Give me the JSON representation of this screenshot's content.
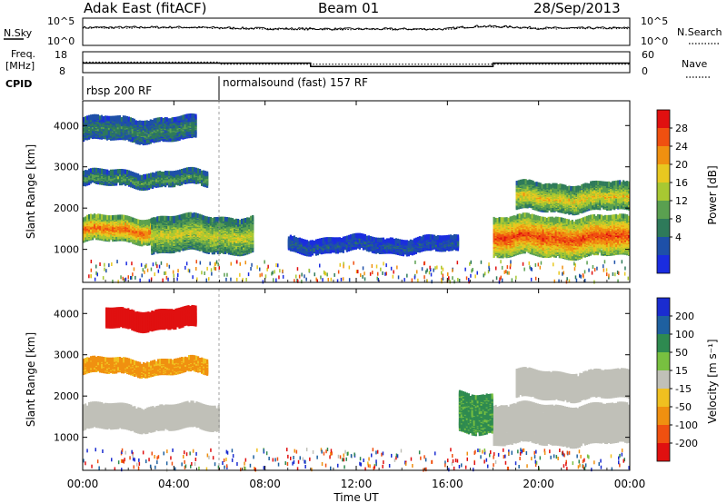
{
  "header": {
    "site": "Adak East (fitACF)",
    "beam": "Beam 01",
    "date": "28/Sep/2013"
  },
  "noise_panel": {
    "left_label": "N.Sky",
    "right_label": "N.Search",
    "left_ticks": [
      "10^5",
      "10^0"
    ],
    "right_ticks": [
      "10^5",
      "10^0"
    ]
  },
  "freq_panel": {
    "left_label_line1": "Freq.",
    "left_label_line2": "[MHz]",
    "right_label": "Nave",
    "left_ticks": [
      "18",
      "8"
    ],
    "right_ticks": [
      "60",
      "0"
    ]
  },
  "cpid_panel": {
    "label": "CPID",
    "mode1": "rbsp 200 RF",
    "mode2": "normalsound (fast) 157 RF"
  },
  "power_panel": {
    "ylabel": "Slant Range [km]",
    "y_ticks": [
      "4000",
      "3000",
      "2000",
      "1000"
    ],
    "colorbar_label": "Power [dB]",
    "colorbar_ticks": [
      "28",
      "24",
      "20",
      "16",
      "12",
      "8",
      "4"
    ],
    "colors": [
      "#1a2ce0",
      "#1e50a8",
      "#2e7a5a",
      "#5aa050",
      "#a8c832",
      "#e8c820",
      "#f09010",
      "#f05010",
      "#e01010"
    ]
  },
  "velocity_panel": {
    "ylabel": "Slant Range [km]",
    "y_ticks": [
      "4000",
      "3000",
      "2000",
      "1000"
    ],
    "colorbar_label": "Velocity [m s⁻¹]",
    "colorbar_ticks": [
      "200",
      "100",
      "50",
      "15",
      "-15",
      "-50",
      "-100",
      "-200"
    ],
    "colors": [
      "#1a2cd0",
      "#1e60a0",
      "#2e8a50",
      "#78c040",
      "#c0c0b8",
      "#f0c020",
      "#f09010",
      "#f05010",
      "#e01010"
    ]
  },
  "x_axis": {
    "label": "Time UT",
    "ticks": [
      "00:00",
      "04:00",
      "08:00",
      "12:00",
      "16:00",
      "20:00",
      "00:00"
    ]
  },
  "chart_data": [
    {
      "type": "line",
      "title": "Adak East (fitACF)  Beam 01  28/Sep/2013",
      "panel": "noise",
      "y_scale": "log",
      "y_range": [
        "10^0",
        "10^5"
      ],
      "series": [
        {
          "name": "N.Sky",
          "x": [
            "00:00",
            "04:00",
            "08:00",
            "12:00",
            "16:00",
            "17:30",
            "20:00",
            "00:00"
          ],
          "values": [
            2500,
            3000,
            1500,
            1200,
            1200,
            5000,
            1800,
            2000
          ]
        },
        {
          "name": "N.Search",
          "x": [
            "00:00",
            "04:00",
            "08:00",
            "12:00",
            "16:00",
            "17:30",
            "20:00",
            "00:00"
          ],
          "values": [
            2000,
            2500,
            1200,
            1000,
            1000,
            4000,
            1500,
            1800
          ]
        }
      ]
    },
    {
      "type": "line",
      "panel": "frequency",
      "y_range": [
        8,
        18
      ],
      "y2_range": [
        0,
        60
      ],
      "series": [
        {
          "name": "Freq.",
          "x": [
            "00:00",
            "10:00",
            "10:00",
            "18:00",
            "18:00",
            "00:00"
          ],
          "values": [
            12.5,
            12.5,
            10.5,
            10.5,
            12.5,
            12.5
          ]
        },
        {
          "name": "Nave",
          "x": [
            "00:00",
            "06:00",
            "06:00",
            "00:00"
          ],
          "values": [
            30,
            30,
            23,
            23
          ]
        }
      ]
    },
    {
      "type": "heatmap",
      "panel": "power",
      "xlabel": "Time UT",
      "ylabel": "Slant Range [km]",
      "xlim": [
        "00:00",
        "24:00"
      ],
      "ylim": [
        200,
        4600
      ],
      "colorbar": {
        "label": "Power [dB]",
        "range": [
          0,
          32
        ],
        "ticks": [
          28,
          24,
          20,
          16,
          12,
          8,
          4
        ]
      },
      "features": [
        {
          "name": "main band",
          "t_start": 0.0,
          "t_end": 6.0,
          "r_low": 1250,
          "r_high": 1800,
          "power_db": 26
        },
        {
          "name": "upper band",
          "t_start": 0.0,
          "t_end": 5.5,
          "r_low": 2600,
          "r_high": 2900,
          "power_db": 12
        },
        {
          "name": "far band",
          "t_start": 0.0,
          "t_end": 5.0,
          "r_low": 3700,
          "r_high": 4200,
          "power_db": 10
        },
        {
          "name": "morning near",
          "t_start": 3.0,
          "t_end": 7.5,
          "r_low": 1000,
          "r_high": 1800,
          "power_db": 18
        },
        {
          "name": "ground scatter evening",
          "t_start": 18.0,
          "t_end": 24.0,
          "r_low": 900,
          "r_high": 1800,
          "power_db": 28
        },
        {
          "name": "evening upper",
          "t_start": 19.0,
          "t_end": 24.0,
          "r_low": 2000,
          "r_high": 2600,
          "power_db": 20
        },
        {
          "name": "midday weak",
          "t_start": 9.0,
          "t_end": 16.5,
          "r_low": 1000,
          "r_high": 1300,
          "power_db": 6
        }
      ]
    },
    {
      "type": "heatmap",
      "panel": "velocity",
      "xlabel": "Time UT",
      "ylabel": "Slant Range [km]",
      "xlim": [
        "00:00",
        "24:00"
      ],
      "ylim": [
        200,
        4600
      ],
      "colorbar": {
        "label": "Velocity [m s⁻¹]",
        "range": [
          -250,
          250
        ],
        "ticks": [
          200,
          100,
          50,
          15,
          -15,
          -50,
          -100,
          -200
        ]
      },
      "features": [
        {
          "name": "main band",
          "t_start": 0.0,
          "t_end": 6.0,
          "r_low": 1250,
          "r_high": 1800,
          "velocity": 0
        },
        {
          "name": "upper band",
          "t_start": 0.0,
          "t_end": 5.5,
          "r_low": 2600,
          "r_high": 2900,
          "velocity": -40
        },
        {
          "name": "far band",
          "t_start": 1.0,
          "t_end": 5.0,
          "r_low": 3700,
          "r_high": 4100,
          "velocity": -200
        },
        {
          "name": "evening ground scatter",
          "t_start": 18.0,
          "t_end": 24.0,
          "r_low": 900,
          "r_high": 1800,
          "velocity": 0
        },
        {
          "name": "evening upper",
          "t_start": 19.0,
          "t_end": 24.0,
          "r_low": 2000,
          "r_high": 2600,
          "velocity": 0
        },
        {
          "name": "green streaks",
          "t_start": 16.5,
          "t_end": 18.0,
          "r_low": 1200,
          "r_high": 2100,
          "velocity": 40
        }
      ]
    }
  ]
}
